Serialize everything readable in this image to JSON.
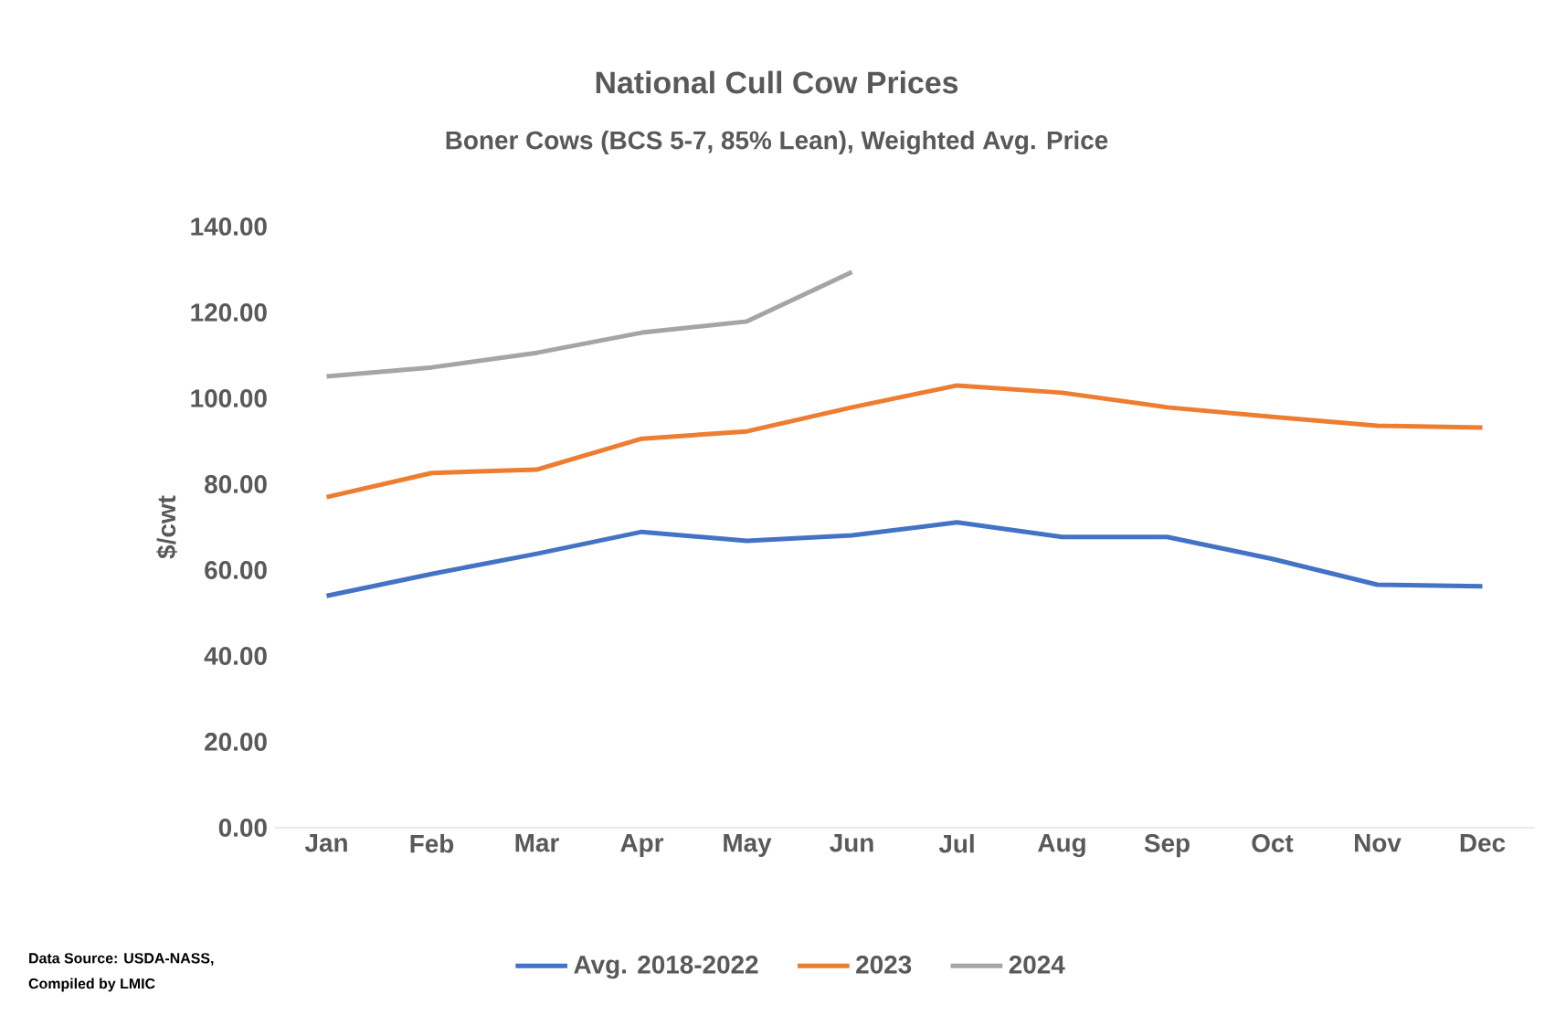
{
  "chart_data": {
    "type": "line",
    "title": "National Cull Cow Prices",
    "subtitle": "Boner Cows (BCS 5-7, 85% Lean), Weighted Avg. Price",
    "ylabel": "$/cwt",
    "categories": [
      "Jan",
      "Feb",
      "Mar",
      "Apr",
      "May",
      "Jun",
      "Jul",
      "Aug",
      "Sep",
      "Oct",
      "Nov",
      "Dec"
    ],
    "series": [
      {
        "name": "Avg. 2018-2022",
        "color": "#4472c4",
        "values": [
          54.0,
          59.1,
          63.8,
          68.9,
          66.8,
          68.1,
          71.1,
          67.7,
          67.7,
          62.6,
          56.6,
          56.2
        ]
      },
      {
        "name": "2023",
        "color": "#ed7d31",
        "values": [
          77.0,
          82.6,
          83.4,
          90.6,
          92.3,
          97.9,
          103.0,
          101.3,
          97.9,
          95.7,
          93.6,
          93.2
        ]
      },
      {
        "name": "2024",
        "color": "#a5a5a5",
        "values": [
          105.1,
          107.2,
          110.6,
          115.3,
          117.9,
          129.4,
          null,
          null,
          null,
          null,
          null,
          null
        ]
      }
    ],
    "ylim": [
      0,
      140
    ],
    "yticks": [
      {
        "value": 0,
        "label": "0.00"
      },
      {
        "value": 20,
        "label": "20.00"
      },
      {
        "value": 40,
        "label": "40.00"
      },
      {
        "value": 60,
        "label": "60.00"
      },
      {
        "value": 80,
        "label": "80.00"
      },
      {
        "value": 100,
        "label": "100.00"
      },
      {
        "value": 120,
        "label": "120.00"
      },
      {
        "value": 140,
        "label": "140.00"
      }
    ],
    "legend": "bottom",
    "annotations": [
      "Data Source: USDA-NASS,",
      "Compiled by LMIC"
    ]
  }
}
